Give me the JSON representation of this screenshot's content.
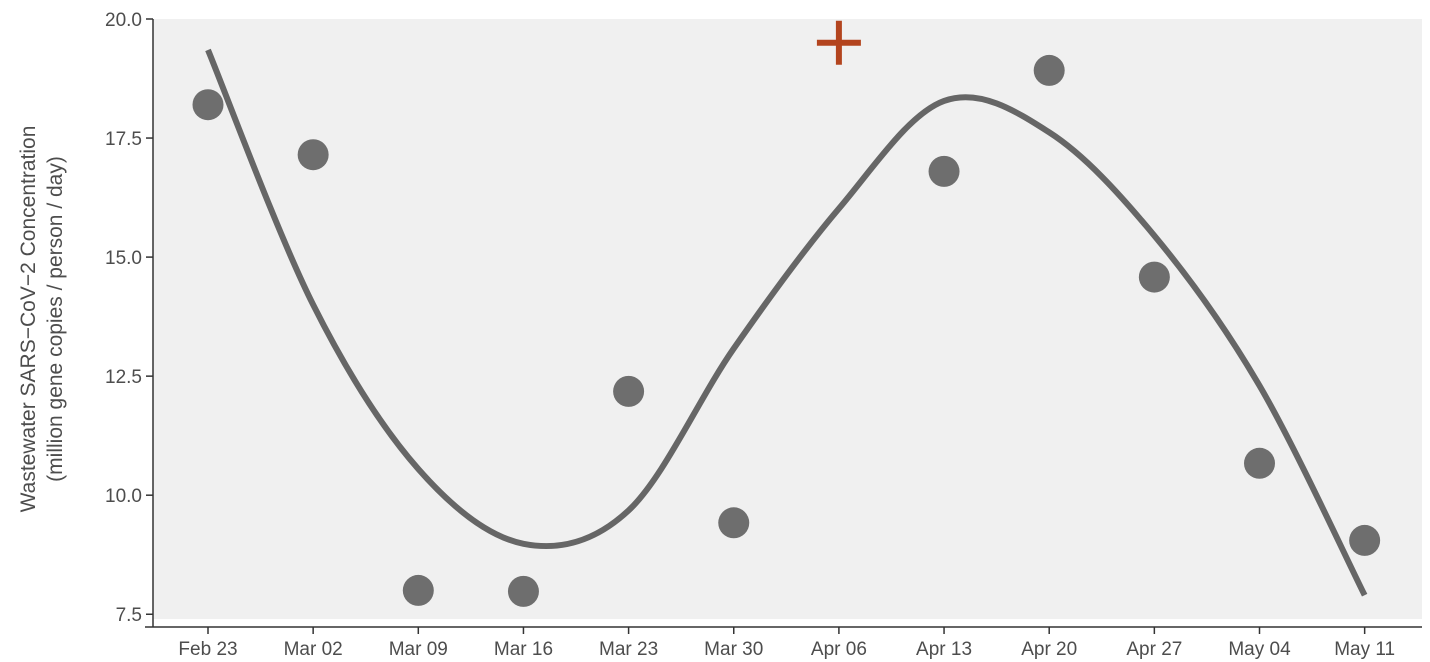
{
  "chart_data": {
    "type": "scatter",
    "title": "",
    "ylabel": [
      "Wastewater SARS−CoV−2 Concentration",
      "(million gene copies / person / day)"
    ],
    "xlabel": "",
    "x_tick_labels": [
      "Feb 23",
      "Mar 02",
      "Mar 09",
      "Mar 16",
      "Mar 23",
      "Mar 30",
      "Apr 06",
      "Apr 13",
      "Apr 20",
      "Apr 27",
      "May 04",
      "May 11"
    ],
    "y_tick_labels": [
      "20.0",
      "17.5",
      "15.0",
      "12.5",
      "10.0",
      "7.5"
    ],
    "y_ticks": [
      20.0,
      17.5,
      15.0,
      12.5,
      10.0,
      7.5
    ],
    "ylim": [
      7.4,
      20.0
    ],
    "grid": false,
    "background_color": "#f0f0f0",
    "points": {
      "color": "#6e6e6e",
      "x": [
        "Feb 23",
        "Mar 02",
        "Mar 09",
        "Mar 16",
        "Mar 23",
        "Mar 30",
        "Apr 13",
        "Apr 20",
        "Apr 27",
        "May 04",
        "May 11"
      ],
      "y": [
        18.2,
        17.15,
        8.0,
        7.98,
        12.18,
        9.42,
        16.8,
        18.92,
        14.58,
        10.67,
        9.05
      ]
    },
    "missing_marker": {
      "x": "Apr 06",
      "y": 19.5,
      "symbol": "plus",
      "color": "#b3441e"
    },
    "smooth_line": {
      "color": "#666666",
      "x": [
        "Feb 23",
        "Mar 02",
        "Mar 09",
        "Mar 16",
        "Mar 23",
        "Mar 30",
        "Apr 06",
        "Apr 13",
        "Apr 20",
        "Apr 27",
        "May 04",
        "May 11"
      ],
      "y": [
        19.35,
        14.0,
        10.55,
        8.98,
        9.68,
        13.08,
        16.02,
        18.28,
        17.62,
        15.45,
        12.3,
        7.9
      ]
    }
  }
}
